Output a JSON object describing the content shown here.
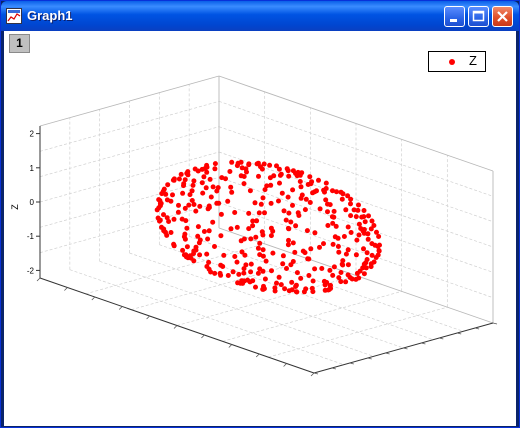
{
  "window": {
    "title": "Graph1",
    "layer_label": "1",
    "icon": "graph-window-icon",
    "controls": [
      "minimize-icon",
      "maximize-icon",
      "close-icon"
    ]
  },
  "legend": {
    "label": "Z",
    "marker_color": "#ff0000"
  },
  "chart_data": {
    "type": "scatter",
    "zlabel": "Z",
    "z_ticks": [
      "-2",
      "-1",
      "0",
      "1",
      "2"
    ],
    "zlim": [
      -2,
      2
    ],
    "grid": true,
    "legend_position": "top-right",
    "marker_color": "#ff0000",
    "series": [
      {
        "name": "Z",
        "shape": "sphere",
        "point_count": 400,
        "center": [
          0,
          0,
          0
        ],
        "radius": 2
      }
    ]
  }
}
